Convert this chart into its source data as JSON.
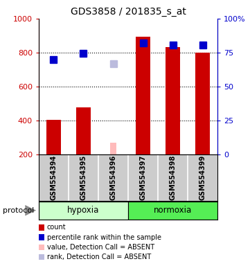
{
  "title": "GDS3858 / 201835_s_at",
  "samples": [
    "GSM554394",
    "GSM554395",
    "GSM554396",
    "GSM554397",
    "GSM554398",
    "GSM554399"
  ],
  "bar_values": [
    405,
    475,
    null,
    895,
    830,
    800
  ],
  "bar_colors": [
    "#cc0000",
    "#cc0000",
    null,
    "#cc0000",
    "#cc0000",
    "#cc0000"
  ],
  "absent_bar_values": [
    null,
    null,
    270,
    null,
    null,
    null
  ],
  "absent_bar_color": "#ffbbbb",
  "percentile_values": [
    760,
    795,
    null,
    855,
    845,
    843
  ],
  "percentile_color": "#0000cc",
  "absent_rank_values": [
    null,
    null,
    735,
    null,
    null,
    null
  ],
  "absent_rank_color": "#bbbbdd",
  "ylim_left": [
    200,
    1000
  ],
  "ylim_right": [
    0,
    100
  ],
  "yticks_left": [
    200,
    400,
    600,
    800,
    1000
  ],
  "yticks_right": [
    0,
    25,
    50,
    75,
    100
  ],
  "ytick_labels_left": [
    "200",
    "400",
    "600",
    "800",
    "1000"
  ],
  "ytick_labels_right": [
    "0",
    "25",
    "50",
    "75",
    "100%"
  ],
  "left_axis_color": "#cc0000",
  "right_axis_color": "#0000cc",
  "hypoxia_color": "#ccffcc",
  "normoxia_color": "#55ee55",
  "protocol_label": "protocol",
  "legend_items": [
    {
      "label": "count",
      "color": "#cc0000"
    },
    {
      "label": "percentile rank within the sample",
      "color": "#0000cc"
    },
    {
      "label": "value, Detection Call = ABSENT",
      "color": "#ffbbbb"
    },
    {
      "label": "rank, Detection Call = ABSENT",
      "color": "#bbbbdd"
    }
  ],
  "bar_width": 0.5,
  "marker_size": 7,
  "background_color": "#ffffff",
  "xlabel_area_color": "#cccccc",
  "figsize": [
    3.61,
    3.84
  ],
  "dpi": 100
}
